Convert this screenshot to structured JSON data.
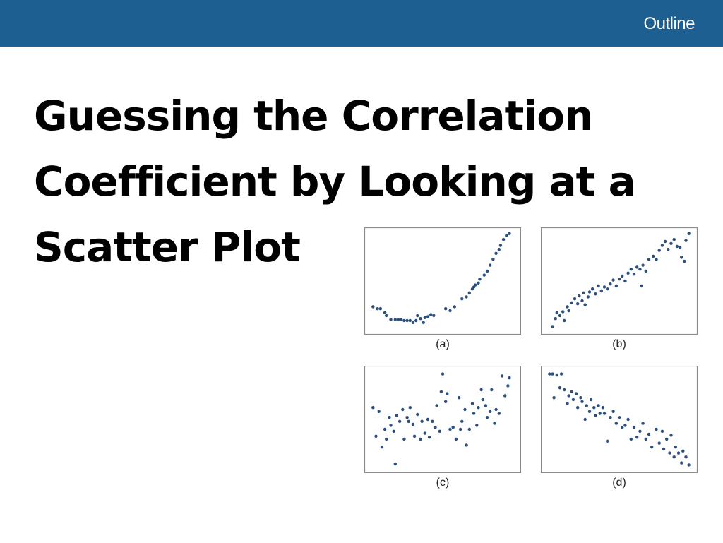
{
  "header": {
    "link_label": "Outline",
    "bar_color": "#1e5f91"
  },
  "slide": {
    "title": "Guessing the Correlation Coefficient by Looking at a Scatter Plot"
  },
  "colors": {
    "dot": "#2b4f7e",
    "frame": "#8a8a8a"
  },
  "chart_data": [
    {
      "type": "scatter",
      "label": "(a)",
      "xlim": [
        0,
        1
      ],
      "ylim": [
        0,
        1
      ],
      "points": [
        [
          0.03,
          0.24
        ],
        [
          0.06,
          0.22
        ],
        [
          0.08,
          0.22
        ],
        [
          0.11,
          0.18
        ],
        [
          0.12,
          0.15
        ],
        [
          0.15,
          0.11
        ],
        [
          0.18,
          0.11
        ],
        [
          0.2,
          0.11
        ],
        [
          0.22,
          0.11
        ],
        [
          0.24,
          0.1
        ],
        [
          0.26,
          0.1
        ],
        [
          0.28,
          0.1
        ],
        [
          0.3,
          0.08
        ],
        [
          0.32,
          0.1
        ],
        [
          0.33,
          0.15
        ],
        [
          0.35,
          0.12
        ],
        [
          0.37,
          0.08
        ],
        [
          0.38,
          0.13
        ],
        [
          0.4,
          0.14
        ],
        [
          0.42,
          0.16
        ],
        [
          0.44,
          0.15
        ],
        [
          0.52,
          0.22
        ],
        [
          0.55,
          0.2
        ],
        [
          0.58,
          0.24
        ],
        [
          0.63,
          0.32
        ],
        [
          0.66,
          0.34
        ],
        [
          0.68,
          0.38
        ],
        [
          0.7,
          0.42
        ],
        [
          0.71,
          0.44
        ],
        [
          0.72,
          0.46
        ],
        [
          0.74,
          0.48
        ],
        [
          0.75,
          0.52
        ],
        [
          0.78,
          0.56
        ],
        [
          0.8,
          0.6
        ],
        [
          0.82,
          0.66
        ],
        [
          0.84,
          0.72
        ],
        [
          0.86,
          0.78
        ],
        [
          0.88,
          0.82
        ],
        [
          0.89,
          0.86
        ],
        [
          0.91,
          0.92
        ],
        [
          0.93,
          0.96
        ],
        [
          0.95,
          0.98
        ]
      ]
    },
    {
      "type": "scatter",
      "label": "(b)",
      "xlim": [
        0,
        1
      ],
      "ylim": [
        0,
        1
      ],
      "points": [
        [
          0.05,
          0.04
        ],
        [
          0.07,
          0.12
        ],
        [
          0.08,
          0.18
        ],
        [
          0.1,
          0.15
        ],
        [
          0.12,
          0.19
        ],
        [
          0.13,
          0.1
        ],
        [
          0.15,
          0.24
        ],
        [
          0.16,
          0.2
        ],
        [
          0.18,
          0.28
        ],
        [
          0.2,
          0.32
        ],
        [
          0.22,
          0.27
        ],
        [
          0.23,
          0.35
        ],
        [
          0.25,
          0.3
        ],
        [
          0.26,
          0.38
        ],
        [
          0.27,
          0.26
        ],
        [
          0.29,
          0.34
        ],
        [
          0.3,
          0.39
        ],
        [
          0.32,
          0.42
        ],
        [
          0.34,
          0.37
        ],
        [
          0.36,
          0.45
        ],
        [
          0.38,
          0.4
        ],
        [
          0.4,
          0.44
        ],
        [
          0.42,
          0.42
        ],
        [
          0.44,
          0.47
        ],
        [
          0.46,
          0.51
        ],
        [
          0.48,
          0.45
        ],
        [
          0.5,
          0.52
        ],
        [
          0.52,
          0.55
        ],
        [
          0.54,
          0.5
        ],
        [
          0.56,
          0.58
        ],
        [
          0.58,
          0.62
        ],
        [
          0.6,
          0.57
        ],
        [
          0.62,
          0.64
        ],
        [
          0.64,
          0.62
        ],
        [
          0.65,
          0.45
        ],
        [
          0.66,
          0.66
        ],
        [
          0.68,
          0.6
        ],
        [
          0.7,
          0.72
        ],
        [
          0.73,
          0.75
        ],
        [
          0.75,
          0.72
        ],
        [
          0.77,
          0.81
        ],
        [
          0.79,
          0.86
        ],
        [
          0.81,
          0.9
        ],
        [
          0.83,
          0.82
        ],
        [
          0.85,
          0.88
        ],
        [
          0.87,
          0.92
        ],
        [
          0.89,
          0.85
        ],
        [
          0.91,
          0.84
        ],
        [
          0.92,
          0.74
        ],
        [
          0.94,
          0.7
        ],
        [
          0.95,
          0.91
        ],
        [
          0.97,
          0.98
        ]
      ]
    },
    {
      "type": "scatter",
      "label": "(c)",
      "xlim": [
        0,
        1
      ],
      "ylim": [
        0,
        1
      ],
      "points": [
        [
          0.03,
          0.62
        ],
        [
          0.05,
          0.33
        ],
        [
          0.07,
          0.58
        ],
        [
          0.09,
          0.22
        ],
        [
          0.11,
          0.4
        ],
        [
          0.12,
          0.3
        ],
        [
          0.14,
          0.52
        ],
        [
          0.15,
          0.44
        ],
        [
          0.17,
          0.38
        ],
        [
          0.18,
          0.05
        ],
        [
          0.19,
          0.54
        ],
        [
          0.21,
          0.48
        ],
        [
          0.23,
          0.6
        ],
        [
          0.24,
          0.3
        ],
        [
          0.26,
          0.52
        ],
        [
          0.27,
          0.48
        ],
        [
          0.28,
          0.62
        ],
        [
          0.3,
          0.45
        ],
        [
          0.31,
          0.33
        ],
        [
          0.33,
          0.55
        ],
        [
          0.35,
          0.3
        ],
        [
          0.36,
          0.48
        ],
        [
          0.38,
          0.36
        ],
        [
          0.4,
          0.5
        ],
        [
          0.41,
          0.32
        ],
        [
          0.43,
          0.48
        ],
        [
          0.45,
          0.42
        ],
        [
          0.46,
          0.64
        ],
        [
          0.48,
          0.38
        ],
        [
          0.49,
          0.78
        ],
        [
          0.5,
          0.96
        ],
        [
          0.52,
          0.68
        ],
        [
          0.53,
          0.76
        ],
        [
          0.55,
          0.4
        ],
        [
          0.57,
          0.42
        ],
        [
          0.59,
          0.3
        ],
        [
          0.61,
          0.72
        ],
        [
          0.62,
          0.4
        ],
        [
          0.63,
          0.48
        ],
        [
          0.65,
          0.6
        ],
        [
          0.66,
          0.24
        ],
        [
          0.68,
          0.4
        ],
        [
          0.7,
          0.66
        ],
        [
          0.71,
          0.56
        ],
        [
          0.73,
          0.44
        ],
        [
          0.74,
          0.62
        ],
        [
          0.76,
          0.8
        ],
        [
          0.77,
          0.7
        ],
        [
          0.79,
          0.64
        ],
        [
          0.8,
          0.52
        ],
        [
          0.82,
          0.58
        ],
        [
          0.83,
          0.8
        ],
        [
          0.85,
          0.46
        ],
        [
          0.86,
          0.6
        ],
        [
          0.88,
          0.56
        ],
        [
          0.9,
          0.94
        ],
        [
          0.92,
          0.74
        ],
        [
          0.94,
          0.84
        ],
        [
          0.95,
          0.92
        ]
      ]
    },
    {
      "type": "scatter",
      "label": "(d)",
      "xlim": [
        0,
        1
      ],
      "ylim": [
        0,
        1
      ],
      "points": [
        [
          0.03,
          0.96
        ],
        [
          0.05,
          0.96
        ],
        [
          0.06,
          0.72
        ],
        [
          0.08,
          0.95
        ],
        [
          0.1,
          0.82
        ],
        [
          0.11,
          0.96
        ],
        [
          0.13,
          0.8
        ],
        [
          0.15,
          0.66
        ],
        [
          0.16,
          0.74
        ],
        [
          0.18,
          0.78
        ],
        [
          0.19,
          0.7
        ],
        [
          0.21,
          0.76
        ],
        [
          0.22,
          0.62
        ],
        [
          0.24,
          0.72
        ],
        [
          0.25,
          0.68
        ],
        [
          0.27,
          0.5
        ],
        [
          0.28,
          0.64
        ],
        [
          0.3,
          0.58
        ],
        [
          0.31,
          0.7
        ],
        [
          0.33,
          0.62
        ],
        [
          0.34,
          0.54
        ],
        [
          0.36,
          0.64
        ],
        [
          0.37,
          0.56
        ],
        [
          0.39,
          0.62
        ],
        [
          0.4,
          0.56
        ],
        [
          0.42,
          0.28
        ],
        [
          0.44,
          0.52
        ],
        [
          0.46,
          0.58
        ],
        [
          0.48,
          0.46
        ],
        [
          0.5,
          0.52
        ],
        [
          0.52,
          0.42
        ],
        [
          0.54,
          0.44
        ],
        [
          0.56,
          0.5
        ],
        [
          0.58,
          0.3
        ],
        [
          0.6,
          0.42
        ],
        [
          0.62,
          0.32
        ],
        [
          0.64,
          0.38
        ],
        [
          0.66,
          0.46
        ],
        [
          0.68,
          0.3
        ],
        [
          0.7,
          0.35
        ],
        [
          0.72,
          0.22
        ],
        [
          0.75,
          0.4
        ],
        [
          0.77,
          0.26
        ],
        [
          0.79,
          0.38
        ],
        [
          0.8,
          0.2
        ],
        [
          0.82,
          0.3
        ],
        [
          0.84,
          0.16
        ],
        [
          0.85,
          0.34
        ],
        [
          0.87,
          0.12
        ],
        [
          0.88,
          0.22
        ],
        [
          0.9,
          0.16
        ],
        [
          0.92,
          0.06
        ],
        [
          0.93,
          0.18
        ],
        [
          0.95,
          0.12
        ],
        [
          0.97,
          0.04
        ]
      ]
    }
  ]
}
